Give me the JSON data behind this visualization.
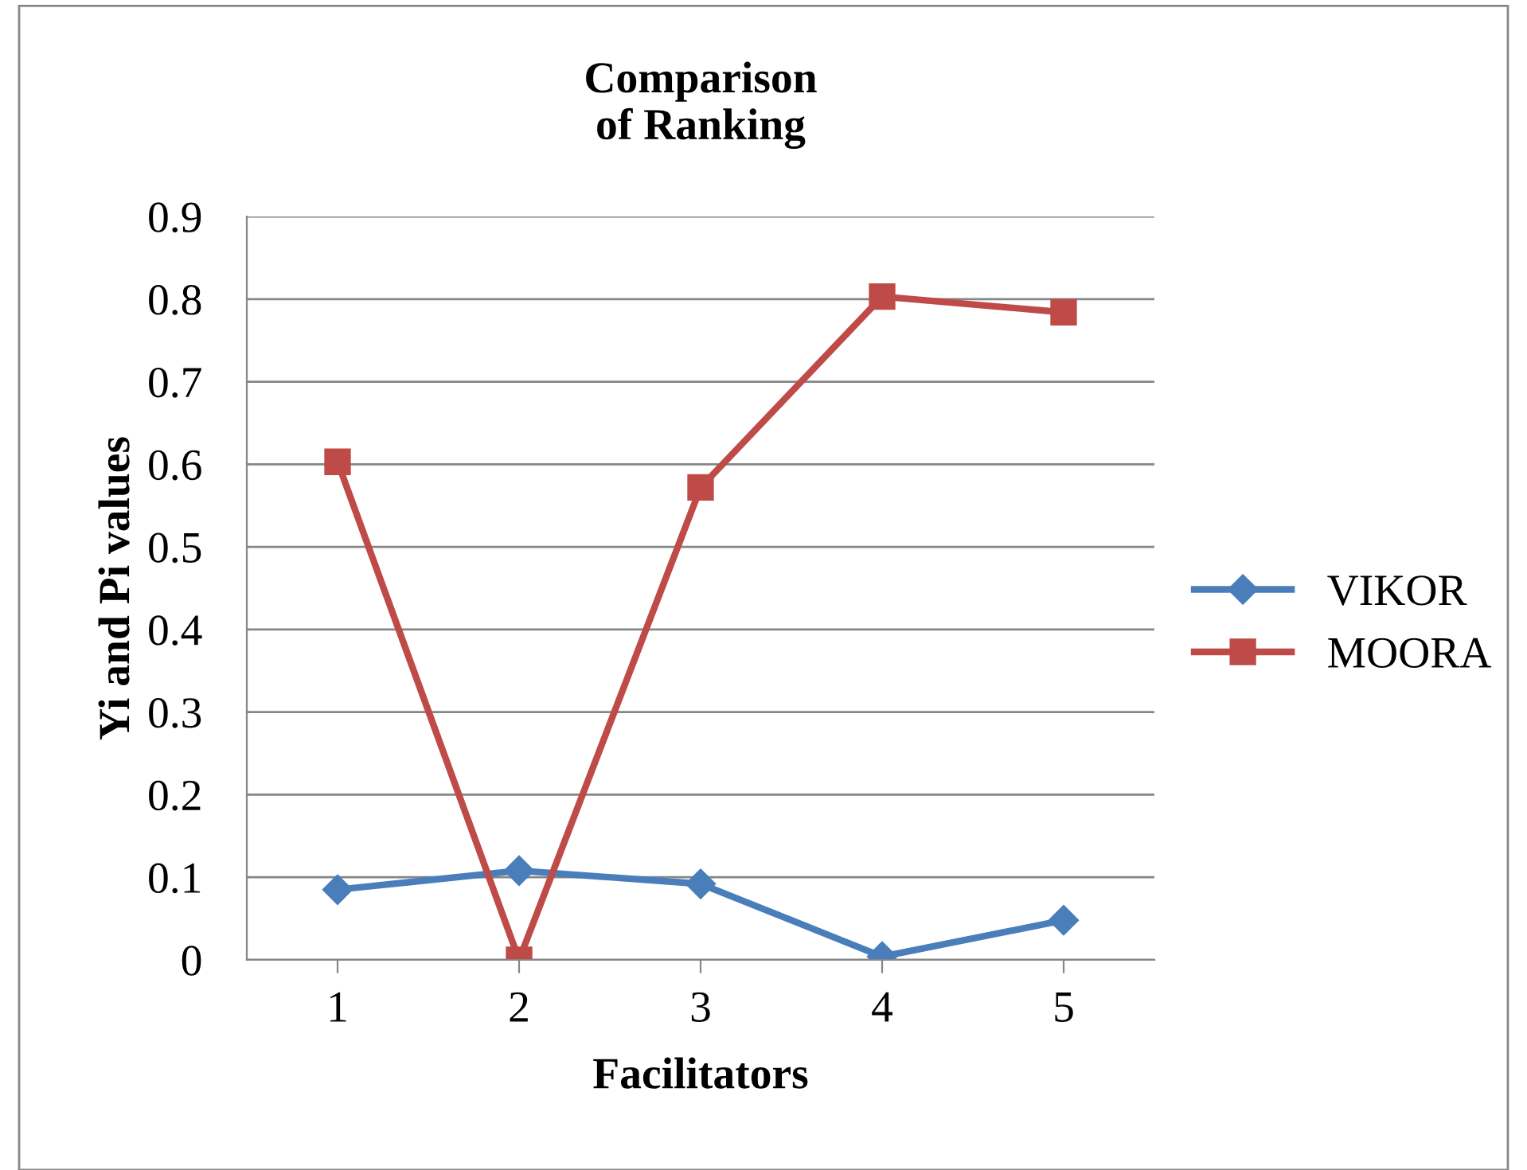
{
  "chart_data": {
    "type": "line",
    "title": "Comparison\nof Ranking",
    "xlabel": "Facilitators",
    "ylabel": "Yi and Pi values",
    "categories": [
      "1",
      "2",
      "3",
      "4",
      "5"
    ],
    "series": [
      {
        "name": "VIKOR",
        "color": "#4a7ebb",
        "marker": "diamond",
        "values": [
          0.085,
          0.108,
          0.092,
          0.004,
          0.048
        ]
      },
      {
        "name": "MOORA",
        "color": "#be4b48",
        "marker": "square",
        "values": [
          0.603,
          0.0,
          0.572,
          0.803,
          0.784
        ]
      }
    ],
    "ylim": [
      0,
      0.9
    ],
    "yticks": [
      0,
      0.1,
      0.2,
      0.3,
      0.4,
      0.5,
      0.6,
      0.7,
      0.8,
      0.9
    ],
    "grid": "y",
    "legend": "right",
    "line_style": "solid"
  }
}
